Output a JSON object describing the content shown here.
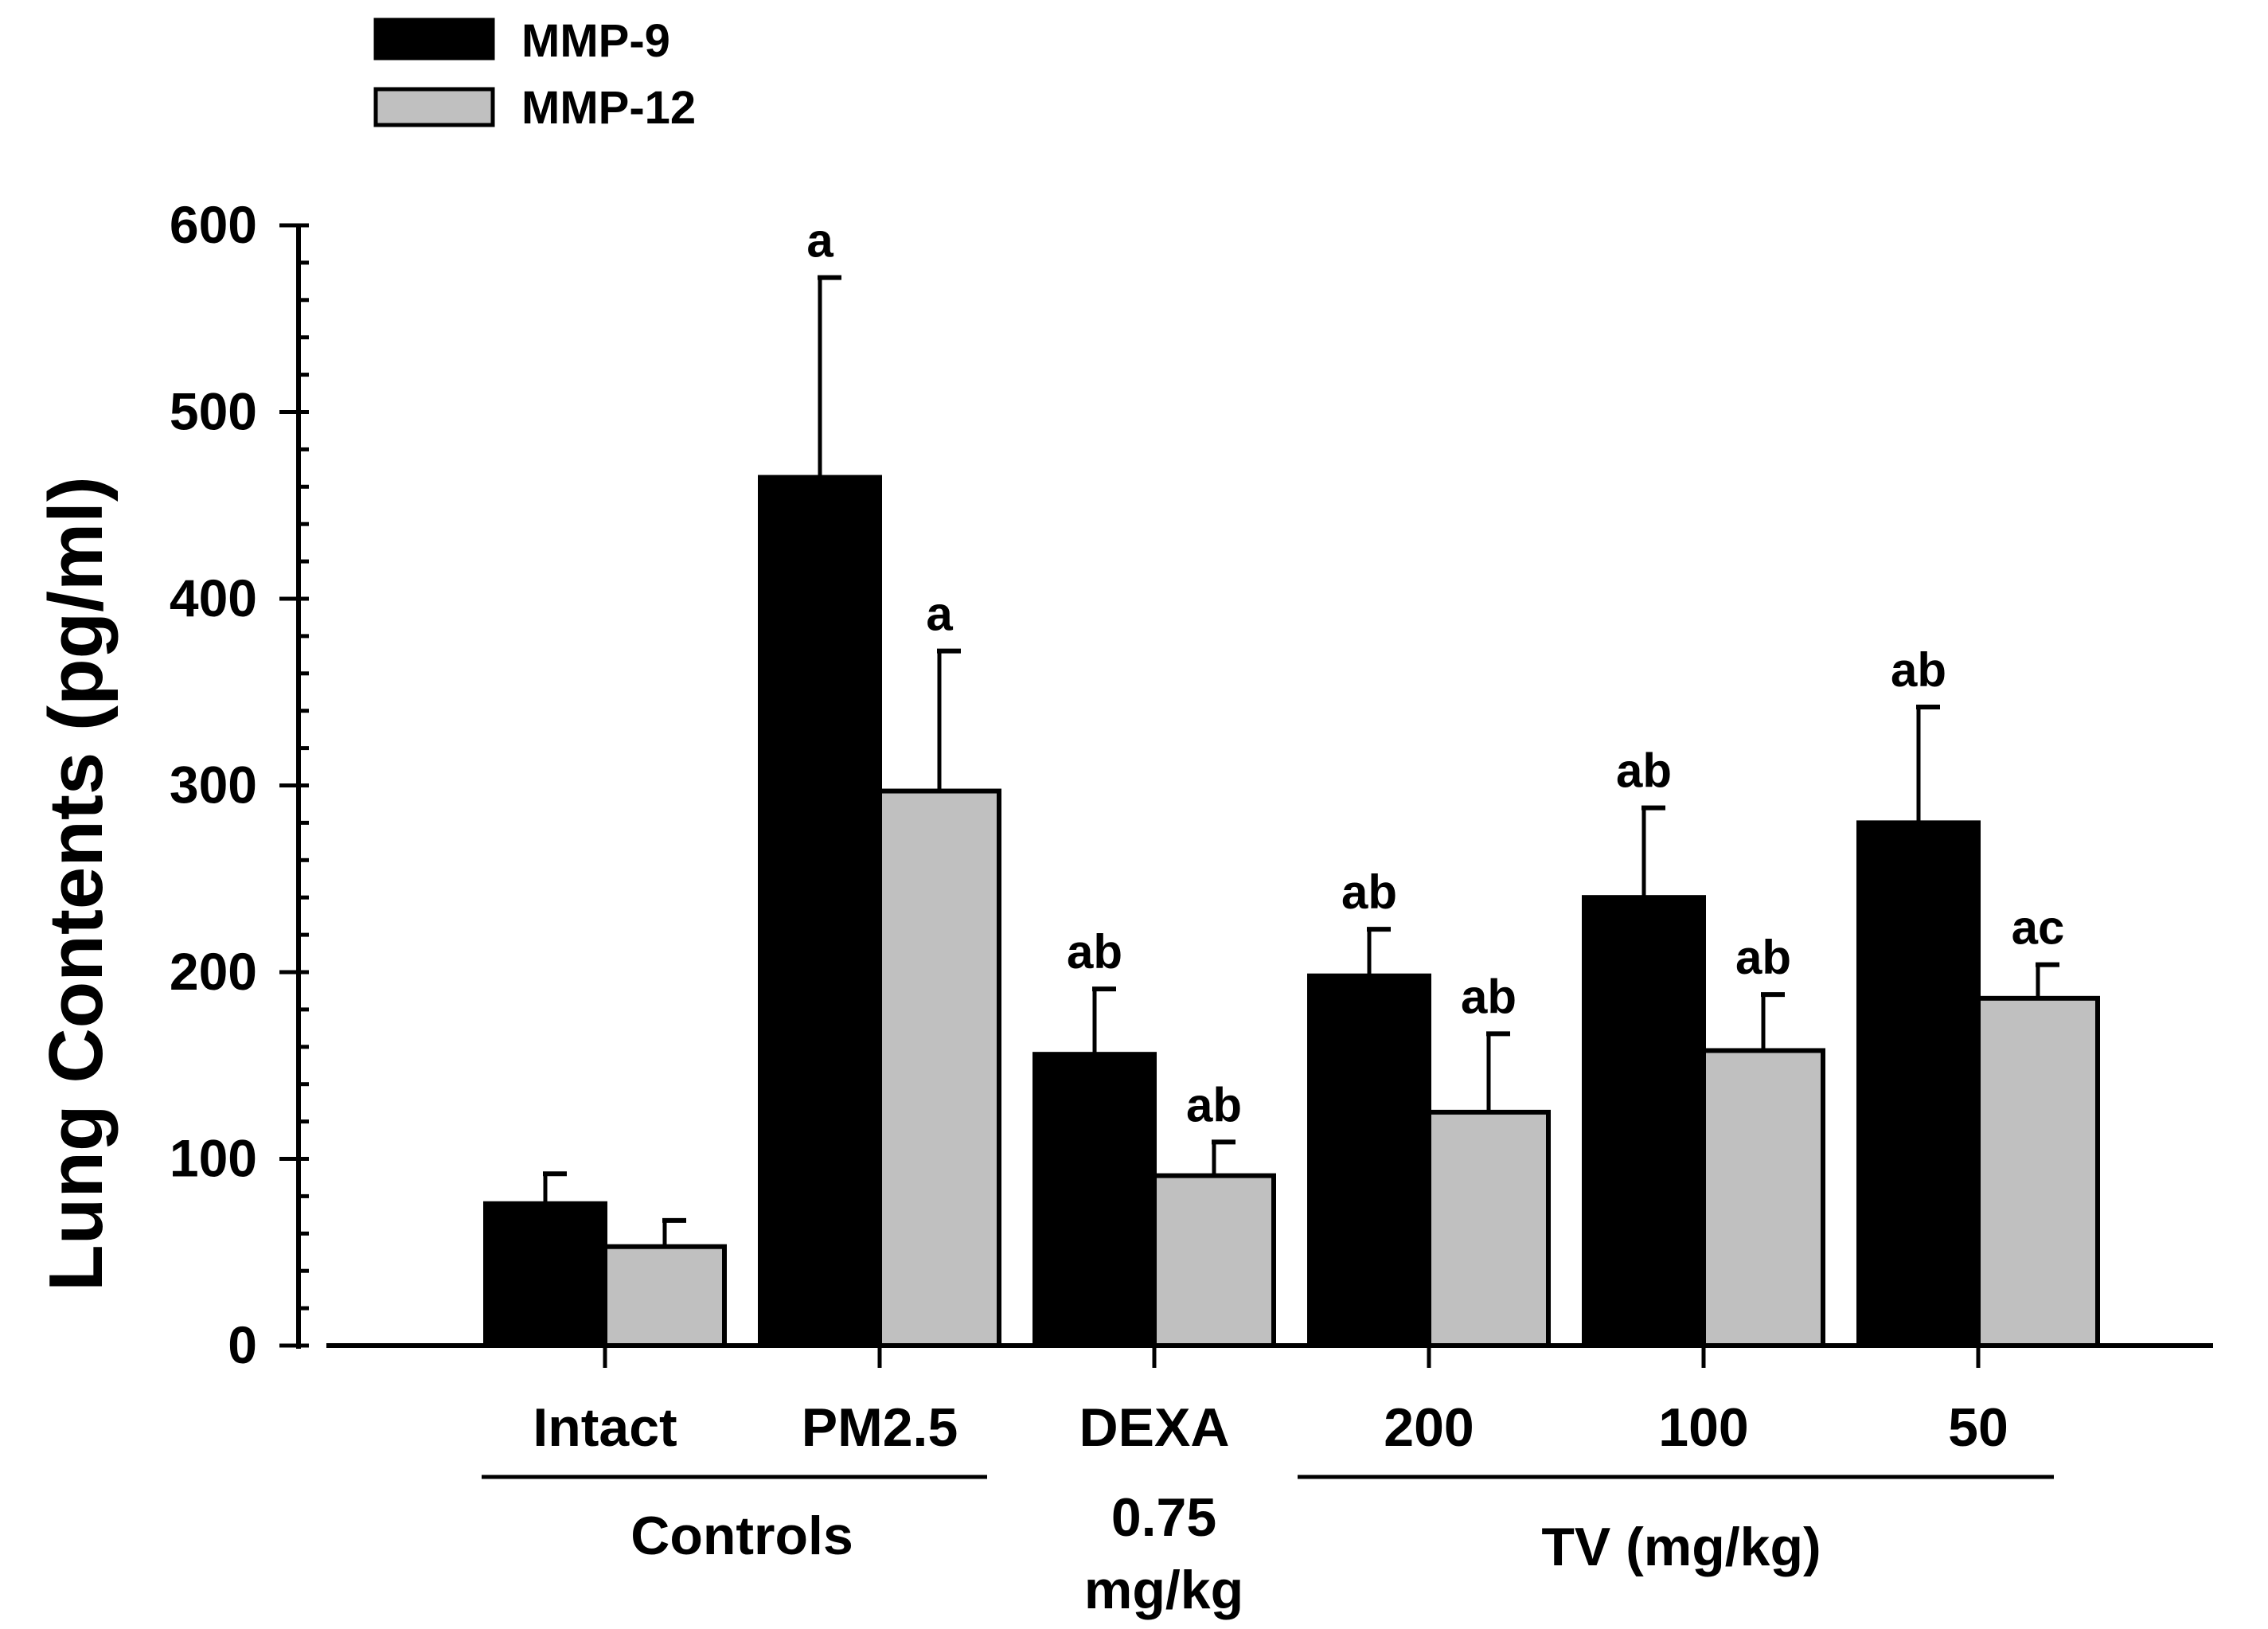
{
  "chart_data": {
    "type": "bar",
    "title": "",
    "ylabel": "Lung Contents (pg/ml)",
    "xlabel": "",
    "ylim": [
      0,
      600
    ],
    "yticks": [
      0,
      100,
      200,
      300,
      400,
      500,
      600
    ],
    "grid": false,
    "legend_position": "top-left",
    "categories": [
      "Intact",
      "PM2.5",
      "DEXA",
      "200",
      "100",
      "50"
    ],
    "series": [
      {
        "name": "MMP-9",
        "color": "#000000",
        "values": [
          76,
          465,
          156,
          198,
          240,
          280
        ],
        "errors": [
          16,
          107,
          35,
          25,
          48,
          62
        ],
        "labels": [
          "",
          "a",
          "ab",
          "ab",
          "ab",
          "ab"
        ]
      },
      {
        "name": "MMP-12",
        "color": "#c0c0c0",
        "values": [
          53,
          297,
          91,
          125,
          158,
          186
        ],
        "errors": [
          14,
          75,
          18,
          42,
          30,
          18
        ],
        "labels": [
          "",
          "a",
          "ab",
          "ab",
          "ab",
          "ac"
        ]
      }
    ],
    "group_labels": [
      {
        "text": "Controls",
        "categories": [
          0,
          1
        ]
      },
      {
        "lines": [
          "0.75",
          "mg/kg"
        ],
        "categories": [
          2
        ]
      },
      {
        "text": "TV (mg/kg)",
        "categories": [
          3,
          4,
          5
        ]
      }
    ]
  }
}
